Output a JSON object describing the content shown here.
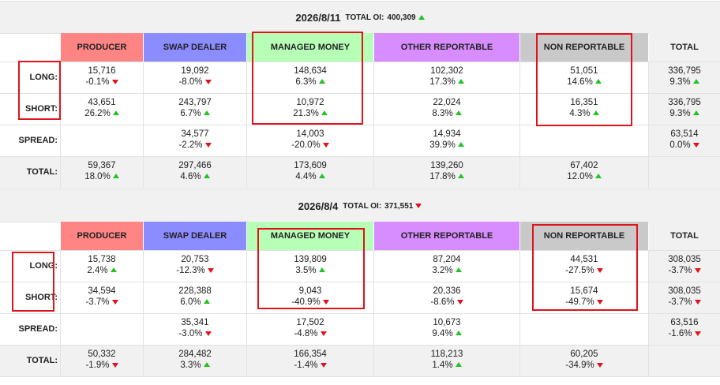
{
  "headers": {
    "producer": "PRODUCER",
    "swap": "SWAP DEALER",
    "managed": "MANAGED MONEY",
    "other": "OTHER REPORTABLE",
    "nonrep": "NON REPORTABLE",
    "total": "TOTAL"
  },
  "row_labels": {
    "long": "LONG:",
    "short": "SHORT:",
    "spread": "SPREAD:",
    "total": "TOTAL:"
  },
  "colors": {
    "producer": "#ff8585",
    "swap": "#8a8cff",
    "managed": "#b7ffb7",
    "other": "#d78cff",
    "nonrep": "#c9c9c9",
    "highlight": "#e0121b",
    "up": "#22c322",
    "down": "#e0121b"
  },
  "reports": [
    {
      "date": "2026/8/11",
      "total_oi_label": "TOTAL OI:",
      "total_oi": "400,309",
      "total_oi_dir": "up",
      "rows": {
        "long": [
          {
            "v": "15,716",
            "p": "-0.1%",
            "d": "down"
          },
          {
            "v": "19,092",
            "p": "-8.0%",
            "d": "down"
          },
          {
            "v": "148,634",
            "p": "6.3%",
            "d": "up"
          },
          {
            "v": "102,302",
            "p": "17.3%",
            "d": "up"
          },
          {
            "v": "51,051",
            "p": "14.6%",
            "d": "up"
          },
          {
            "v": "336,795",
            "p": "9.3%",
            "d": "up"
          }
        ],
        "short": [
          {
            "v": "43,651",
            "p": "26.2%",
            "d": "up"
          },
          {
            "v": "243,797",
            "p": "6.7%",
            "d": "up"
          },
          {
            "v": "10,972",
            "p": "21.3%",
            "d": "up"
          },
          {
            "v": "22,024",
            "p": "8.3%",
            "d": "up"
          },
          {
            "v": "16,351",
            "p": "4.3%",
            "d": "up"
          },
          {
            "v": "336,795",
            "p": "9.3%",
            "d": "up"
          }
        ],
        "spread": [
          null,
          {
            "v": "34,577",
            "p": "-2.2%",
            "d": "down"
          },
          {
            "v": "14,003",
            "p": "-20.0%",
            "d": "down"
          },
          {
            "v": "14,934",
            "p": "39.9%",
            "d": "up"
          },
          null,
          {
            "v": "63,514",
            "p": "0.0%",
            "d": "down"
          }
        ],
        "total": [
          {
            "v": "59,367",
            "p": "18.0%",
            "d": "up"
          },
          {
            "v": "297,466",
            "p": "4.6%",
            "d": "up"
          },
          {
            "v": "173,609",
            "p": "4.4%",
            "d": "up"
          },
          {
            "v": "139,260",
            "p": "17.8%",
            "d": "up"
          },
          {
            "v": "67,402",
            "p": "12.0%",
            "d": "up"
          },
          null
        ]
      }
    },
    {
      "date": "2026/8/4",
      "total_oi_label": "TOTAL OI:",
      "total_oi": "371,551",
      "total_oi_dir": "down",
      "rows": {
        "long": [
          {
            "v": "15,738",
            "p": "2.4%",
            "d": "up"
          },
          {
            "v": "20,753",
            "p": "-12.3%",
            "d": "down"
          },
          {
            "v": "139,809",
            "p": "3.5%",
            "d": "up"
          },
          {
            "v": "87,204",
            "p": "3.2%",
            "d": "up"
          },
          {
            "v": "44,531",
            "p": "-27.5%",
            "d": "down"
          },
          {
            "v": "308,035",
            "p": "-3.7%",
            "d": "down"
          }
        ],
        "short": [
          {
            "v": "34,594",
            "p": "-3.7%",
            "d": "down"
          },
          {
            "v": "228,388",
            "p": "6.0%",
            "d": "up"
          },
          {
            "v": "9,043",
            "p": "-40.9%",
            "d": "down"
          },
          {
            "v": "20,336",
            "p": "-8.6%",
            "d": "down"
          },
          {
            "v": "15,674",
            "p": "-49.7%",
            "d": "down"
          },
          {
            "v": "308,035",
            "p": "-3.7%",
            "d": "down"
          }
        ],
        "spread": [
          null,
          {
            "v": "35,341",
            "p": "-3.0%",
            "d": "down"
          },
          {
            "v": "17,502",
            "p": "-4.8%",
            "d": "down"
          },
          {
            "v": "10,673",
            "p": "9.4%",
            "d": "up"
          },
          null,
          {
            "v": "63,516",
            "p": "-1.6%",
            "d": "down"
          }
        ],
        "total": [
          {
            "v": "50,332",
            "p": "-1.9%",
            "d": "down"
          },
          {
            "v": "284,482",
            "p": "3.3%",
            "d": "up"
          },
          {
            "v": "166,354",
            "p": "-1.4%",
            "d": "down"
          },
          {
            "v": "118,213",
            "p": "1.4%",
            "d": "up"
          },
          {
            "v": "60,205",
            "p": "-34.9%",
            "d": "down"
          },
          null
        ]
      }
    }
  ]
}
